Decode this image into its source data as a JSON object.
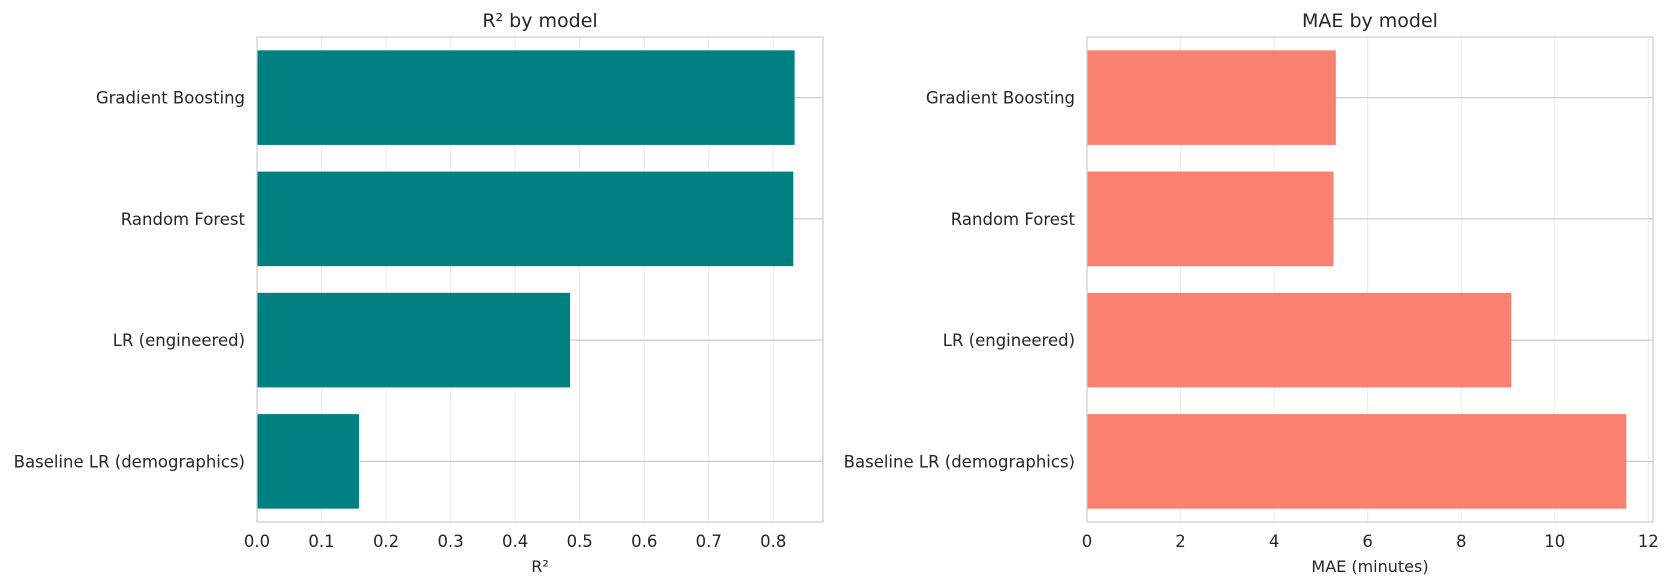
{
  "chart_data": [
    {
      "type": "bar",
      "orientation": "horizontal",
      "title": "R² by model",
      "xlabel": "R²",
      "ylabel": "",
      "categories": [
        "Gradient Boosting",
        "Random Forest",
        "LR (engineered)",
        "Baseline LR (demographics)"
      ],
      "values": [
        0.833,
        0.831,
        0.485,
        0.158
      ],
      "xlim": [
        0,
        0.877
      ],
      "xticks": [
        0.0,
        0.1,
        0.2,
        0.3,
        0.4,
        0.5,
        0.6,
        0.7,
        0.8
      ],
      "xtick_labels": [
        "0.0",
        "0.1",
        "0.2",
        "0.3",
        "0.4",
        "0.5",
        "0.6",
        "0.7",
        "0.8"
      ],
      "color": "#008080",
      "grid": true
    },
    {
      "type": "bar",
      "orientation": "horizontal",
      "title": "MAE by model",
      "xlabel": "MAE (minutes)",
      "ylabel": "",
      "categories": [
        "Gradient Boosting",
        "Random Forest",
        "LR (engineered)",
        "Baseline LR (demographics)"
      ],
      "values": [
        5.32,
        5.27,
        9.07,
        11.53
      ],
      "xlim": [
        0,
        12.1
      ],
      "xticks": [
        0,
        2,
        4,
        6,
        8,
        10,
        12
      ],
      "xtick_labels": [
        "0",
        "2",
        "4",
        "6",
        "8",
        "10",
        "12"
      ],
      "color": "#fa8072",
      "grid": true
    }
  ]
}
